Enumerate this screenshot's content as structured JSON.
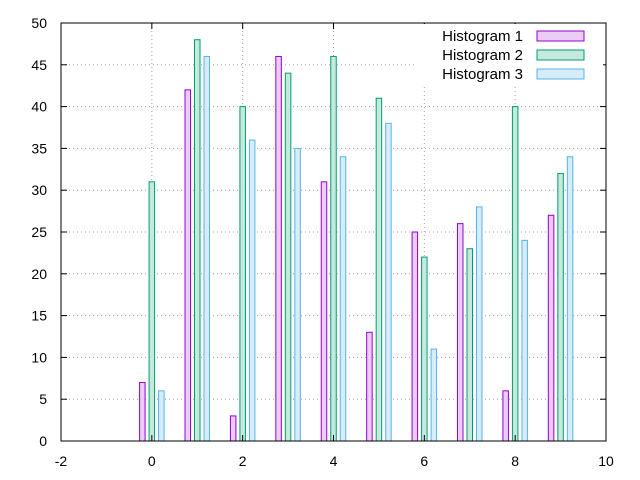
{
  "chart_data": {
    "type": "bar",
    "title": "",
    "xlabel": "",
    "ylabel": "",
    "xlim": [
      -2,
      10
    ],
    "ylim": [
      0,
      50
    ],
    "x_ticks": [
      "-2",
      "0",
      "2",
      "4",
      "6",
      "8",
      "10"
    ],
    "y_ticks": [
      "0",
      "5",
      "10",
      "15",
      "20",
      "25",
      "30",
      "35",
      "40",
      "45",
      "50"
    ],
    "grid": true,
    "legend_position": "top-right",
    "x": [
      0,
      1,
      2,
      3,
      4,
      5,
      6,
      7,
      8,
      9
    ],
    "series": [
      {
        "name": "Histogram 1",
        "color": "#9400d3",
        "fill": "#eaccf7",
        "values": [
          7,
          42,
          3,
          46,
          31,
          13,
          25,
          26,
          6,
          27
        ]
      },
      {
        "name": "Histogram 2",
        "color": "#009e73",
        "fill": "#c6e9dd",
        "values": [
          31,
          48,
          40,
          44,
          46,
          41,
          22,
          23,
          40,
          32
        ]
      },
      {
        "name": "Histogram 3",
        "color": "#56b4e9",
        "fill": "#d6ecf9",
        "values": [
          6,
          46,
          36,
          35,
          34,
          38,
          11,
          28,
          24,
          34
        ]
      }
    ]
  }
}
